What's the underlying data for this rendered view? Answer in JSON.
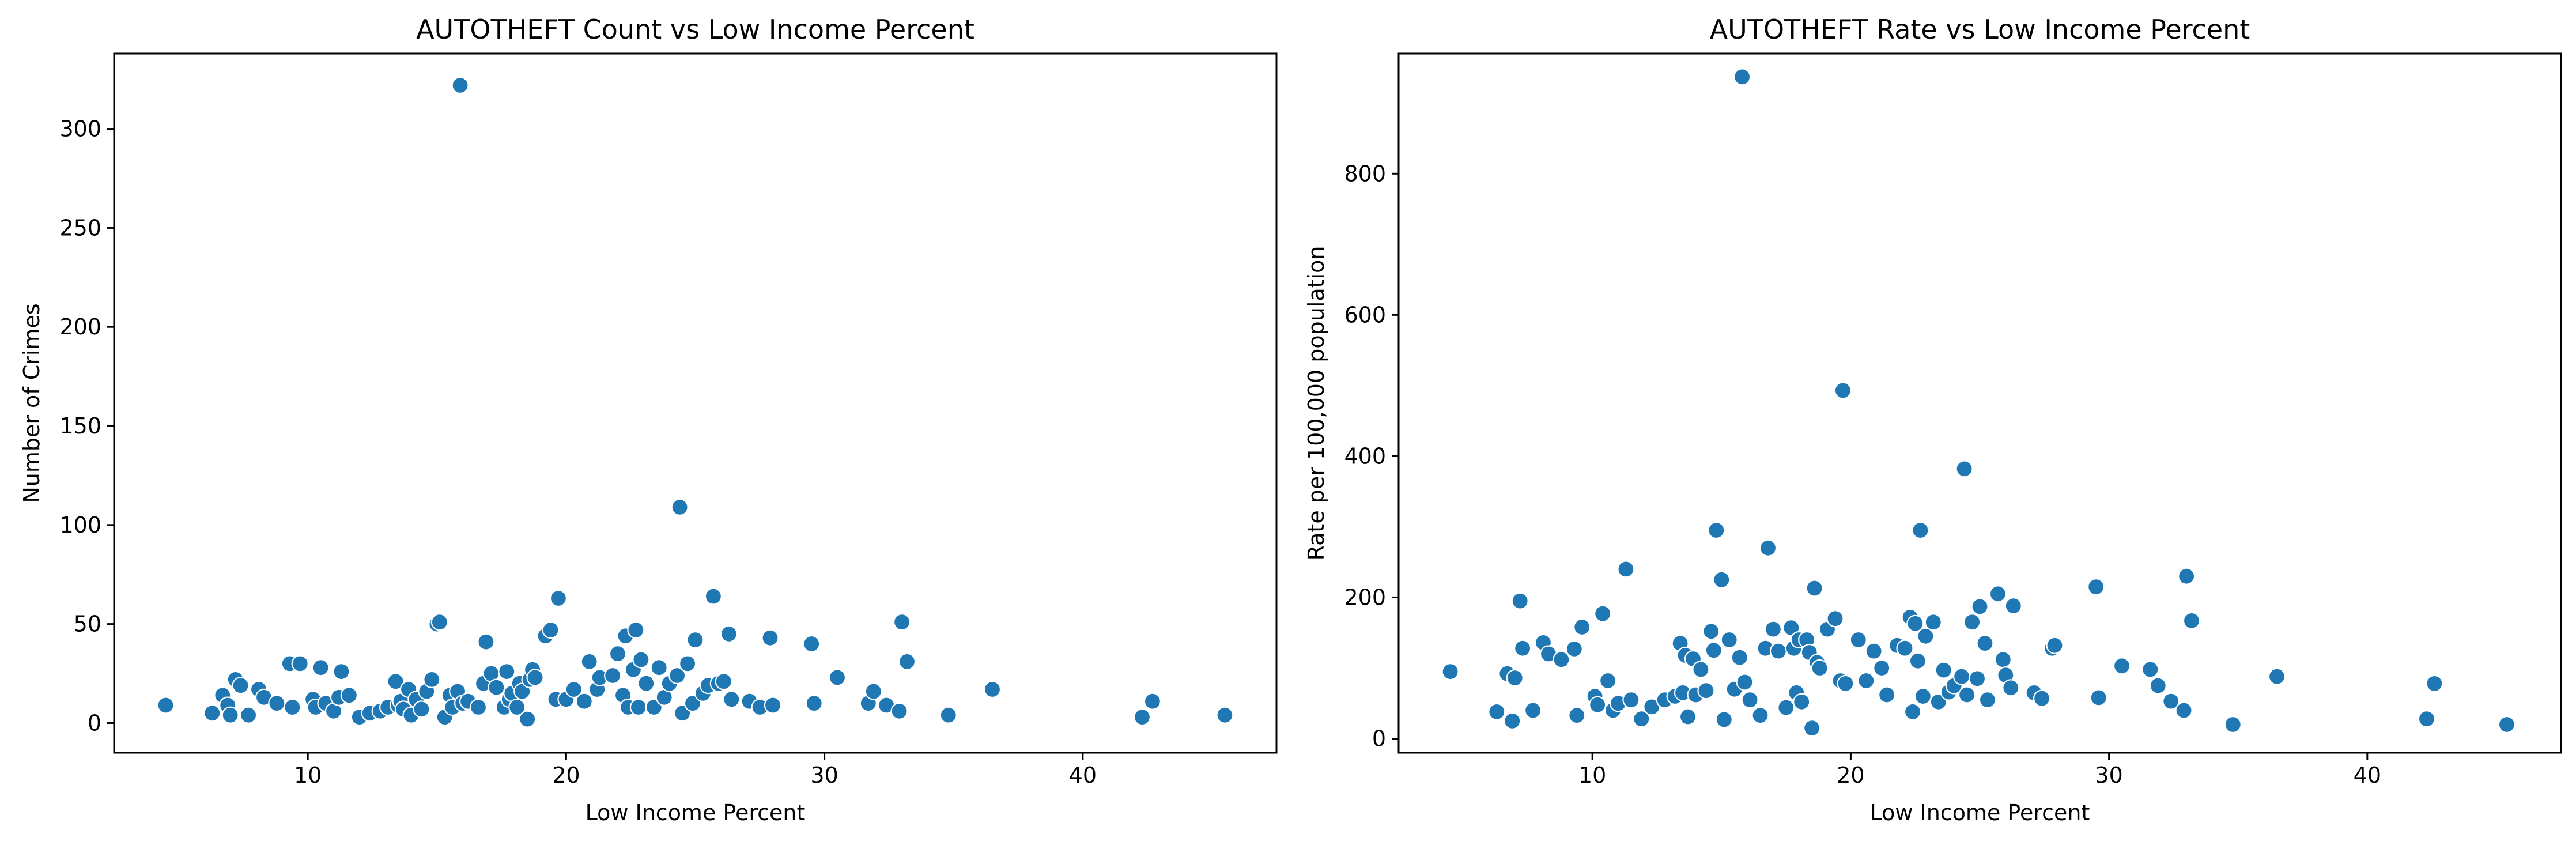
{
  "chart_data": [
    {
      "type": "scatter",
      "title": "AUTOTHEFT Count vs Low Income Percent",
      "xlabel": "Low Income Percent",
      "ylabel": "Number of Crimes",
      "xlim": [
        2.5,
        47.5
      ],
      "ylim": [
        -15,
        338
      ],
      "xticks": [
        10,
        20,
        30,
        40
      ],
      "yticks": [
        0,
        50,
        100,
        150,
        200,
        250,
        300
      ],
      "grid": false,
      "marker_color": "#1f77b4",
      "points": [
        [
          4.5,
          9
        ],
        [
          6.3,
          5
        ],
        [
          6.7,
          14
        ],
        [
          6.9,
          9
        ],
        [
          7.0,
          4
        ],
        [
          7.2,
          22
        ],
        [
          7.4,
          19
        ],
        [
          7.7,
          4
        ],
        [
          8.1,
          17
        ],
        [
          8.3,
          13
        ],
        [
          8.8,
          10
        ],
        [
          9.3,
          30
        ],
        [
          9.4,
          8
        ],
        [
          9.7,
          30
        ],
        [
          10.2,
          12
        ],
        [
          10.3,
          8
        ],
        [
          10.5,
          28
        ],
        [
          10.7,
          10
        ],
        [
          11.0,
          6
        ],
        [
          11.2,
          13
        ],
        [
          11.3,
          26
        ],
        [
          11.6,
          14
        ],
        [
          12.0,
          3
        ],
        [
          12.4,
          5
        ],
        [
          12.8,
          6
        ],
        [
          13.1,
          8
        ],
        [
          13.4,
          21
        ],
        [
          13.5,
          9
        ],
        [
          13.6,
          11
        ],
        [
          13.7,
          7
        ],
        [
          13.9,
          17
        ],
        [
          14.0,
          4
        ],
        [
          14.2,
          12
        ],
        [
          14.4,
          7
        ],
        [
          14.6,
          16
        ],
        [
          14.8,
          22
        ],
        [
          15.0,
          50
        ],
        [
          15.1,
          51
        ],
        [
          15.3,
          3
        ],
        [
          15.5,
          14
        ],
        [
          15.6,
          8
        ],
        [
          15.8,
          16
        ],
        [
          15.9,
          322
        ],
        [
          16.0,
          10
        ],
        [
          16.2,
          11
        ],
        [
          16.6,
          8
        ],
        [
          16.8,
          20
        ],
        [
          16.9,
          41
        ],
        [
          17.1,
          25
        ],
        [
          17.3,
          18
        ],
        [
          17.6,
          8
        ],
        [
          17.7,
          26
        ],
        [
          17.8,
          12
        ],
        [
          17.9,
          15
        ],
        [
          18.1,
          8
        ],
        [
          18.2,
          20
        ],
        [
          18.3,
          16
        ],
        [
          18.5,
          2
        ],
        [
          18.6,
          22
        ],
        [
          18.7,
          27
        ],
        [
          18.8,
          23
        ],
        [
          19.2,
          44
        ],
        [
          19.4,
          47
        ],
        [
          19.6,
          12
        ],
        [
          19.7,
          63
        ],
        [
          20.0,
          12
        ],
        [
          20.3,
          17
        ],
        [
          20.7,
          11
        ],
        [
          20.9,
          31
        ],
        [
          21.2,
          17
        ],
        [
          21.3,
          23
        ],
        [
          21.8,
          24
        ],
        [
          22.0,
          35
        ],
        [
          22.2,
          14
        ],
        [
          22.3,
          44
        ],
        [
          22.4,
          8
        ],
        [
          22.6,
          27
        ],
        [
          22.7,
          47
        ],
        [
          22.8,
          8
        ],
        [
          22.9,
          32
        ],
        [
          23.1,
          20
        ],
        [
          23.4,
          8
        ],
        [
          23.6,
          28
        ],
        [
          23.8,
          13
        ],
        [
          24.0,
          20
        ],
        [
          24.3,
          24
        ],
        [
          24.4,
          109
        ],
        [
          24.5,
          5
        ],
        [
          24.7,
          30
        ],
        [
          24.9,
          10
        ],
        [
          25.0,
          42
        ],
        [
          25.3,
          15
        ],
        [
          25.5,
          19
        ],
        [
          25.7,
          64
        ],
        [
          25.9,
          20
        ],
        [
          26.1,
          21
        ],
        [
          26.3,
          45
        ],
        [
          26.4,
          12
        ],
        [
          27.1,
          11
        ],
        [
          27.5,
          8
        ],
        [
          27.9,
          43
        ],
        [
          28.0,
          9
        ],
        [
          29.5,
          40
        ],
        [
          29.6,
          10
        ],
        [
          30.5,
          23
        ],
        [
          31.7,
          10
        ],
        [
          31.9,
          16
        ],
        [
          32.4,
          9
        ],
        [
          32.9,
          6
        ],
        [
          33.0,
          51
        ],
        [
          33.2,
          31
        ],
        [
          34.8,
          4
        ],
        [
          36.5,
          17
        ],
        [
          42.3,
          3
        ],
        [
          42.7,
          11
        ],
        [
          45.5,
          4
        ]
      ]
    },
    {
      "type": "scatter",
      "title": "AUTOTHEFT Rate vs Low Income Percent",
      "xlabel": "Low Income Percent",
      "ylabel": "Rate per 100,000 population",
      "xlim": [
        2.5,
        47.5
      ],
      "ylim": [
        -20,
        970
      ],
      "xticks": [
        10,
        20,
        30,
        40
      ],
      "yticks": [
        0,
        200,
        400,
        600,
        800
      ],
      "grid": false,
      "marker_color": "#1f77b4",
      "points": [
        [
          4.5,
          95
        ],
        [
          6.3,
          38
        ],
        [
          6.7,
          92
        ],
        [
          6.9,
          25
        ],
        [
          7.0,
          86
        ],
        [
          7.2,
          195
        ],
        [
          7.3,
          128
        ],
        [
          7.7,
          40
        ],
        [
          8.1,
          136
        ],
        [
          8.3,
          120
        ],
        [
          8.8,
          112
        ],
        [
          9.3,
          127
        ],
        [
          9.4,
          33
        ],
        [
          9.6,
          158
        ],
        [
          10.1,
          60
        ],
        [
          10.2,
          48
        ],
        [
          10.4,
          177
        ],
        [
          10.6,
          82
        ],
        [
          10.8,
          40
        ],
        [
          11.0,
          50
        ],
        [
          11.3,
          240
        ],
        [
          11.5,
          55
        ],
        [
          11.9,
          28
        ],
        [
          12.3,
          45
        ],
        [
          12.8,
          55
        ],
        [
          13.2,
          60
        ],
        [
          13.4,
          135
        ],
        [
          13.5,
          65
        ],
        [
          13.6,
          118
        ],
        [
          13.7,
          31
        ],
        [
          13.9,
          113
        ],
        [
          14.0,
          62
        ],
        [
          14.2,
          98
        ],
        [
          14.4,
          68
        ],
        [
          14.6,
          152
        ],
        [
          14.7,
          125
        ],
        [
          14.8,
          295
        ],
        [
          15.0,
          225
        ],
        [
          15.1,
          27
        ],
        [
          15.3,
          140
        ],
        [
          15.5,
          70
        ],
        [
          15.7,
          115
        ],
        [
          15.8,
          937
        ],
        [
          15.9,
          80
        ],
        [
          16.1,
          55
        ],
        [
          16.5,
          33
        ],
        [
          16.7,
          128
        ],
        [
          16.8,
          270
        ],
        [
          17.0,
          155
        ],
        [
          17.2,
          124
        ],
        [
          17.5,
          44
        ],
        [
          17.7,
          157
        ],
        [
          17.8,
          128
        ],
        [
          17.9,
          65
        ],
        [
          18.0,
          140
        ],
        [
          18.1,
          52
        ],
        [
          18.3,
          140
        ],
        [
          18.4,
          122
        ],
        [
          18.5,
          15
        ],
        [
          18.6,
          213
        ],
        [
          18.7,
          108
        ],
        [
          18.8,
          100
        ],
        [
          19.1,
          155
        ],
        [
          19.4,
          170
        ],
        [
          19.6,
          82
        ],
        [
          19.7,
          493
        ],
        [
          19.8,
          78
        ],
        [
          20.3,
          140
        ],
        [
          20.6,
          82
        ],
        [
          20.9,
          124
        ],
        [
          21.2,
          100
        ],
        [
          21.4,
          62
        ],
        [
          21.8,
          132
        ],
        [
          22.1,
          128
        ],
        [
          22.3,
          172
        ],
        [
          22.4,
          38
        ],
        [
          22.5,
          163
        ],
        [
          22.6,
          110
        ],
        [
          22.7,
          295
        ],
        [
          22.8,
          60
        ],
        [
          22.9,
          145
        ],
        [
          23.2,
          165
        ],
        [
          23.4,
          52
        ],
        [
          23.6,
          97
        ],
        [
          23.8,
          66
        ],
        [
          24.0,
          75
        ],
        [
          24.3,
          88
        ],
        [
          24.4,
          382
        ],
        [
          24.5,
          62
        ],
        [
          24.7,
          165
        ],
        [
          24.9,
          85
        ],
        [
          25.0,
          187
        ],
        [
          25.2,
          135
        ],
        [
          25.3,
          55
        ],
        [
          25.7,
          205
        ],
        [
          25.9,
          112
        ],
        [
          26.0,
          90
        ],
        [
          26.2,
          72
        ],
        [
          26.3,
          188
        ],
        [
          27.1,
          65
        ],
        [
          27.4,
          57
        ],
        [
          27.8,
          128
        ],
        [
          27.9,
          132
        ],
        [
          29.5,
          215
        ],
        [
          29.6,
          58
        ],
        [
          30.5,
          103
        ],
        [
          31.6,
          98
        ],
        [
          31.9,
          75
        ],
        [
          32.4,
          53
        ],
        [
          32.9,
          40
        ],
        [
          33.0,
          230
        ],
        [
          33.2,
          167
        ],
        [
          34.8,
          20
        ],
        [
          36.5,
          88
        ],
        [
          42.3,
          28
        ],
        [
          42.6,
          78
        ],
        [
          45.4,
          20
        ]
      ]
    }
  ]
}
